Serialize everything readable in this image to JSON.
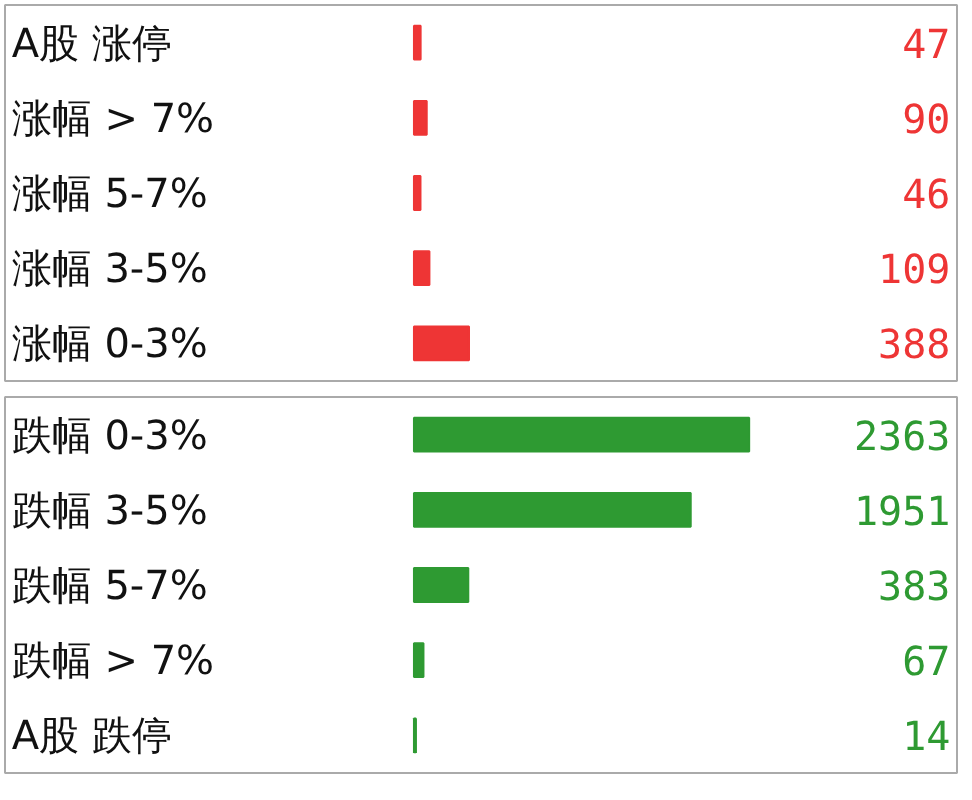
{
  "chart_data": [
    {
      "type": "bar",
      "orientation": "horizontal",
      "categories": [
        "A股 涨停",
        "涨幅 > 7%",
        "涨幅 5-7%",
        "涨幅 3-5%",
        "涨幅 0-3%"
      ],
      "values": [
        47,
        90,
        46,
        109,
        388
      ],
      "colors": [
        "#ee3535",
        "#ee3535",
        "#ee3535",
        "#ee3535",
        "#ee3535"
      ],
      "data_labels": true
    },
    {
      "type": "bar",
      "orientation": "horizontal",
      "categories": [
        "跌幅 0-3%",
        "跌幅 3-5%",
        "跌幅 5-7%",
        "跌幅 > 7%",
        "A股 跌停"
      ],
      "values": [
        2363,
        1951,
        383,
        67,
        14
      ],
      "colors": [
        "#2e9a32",
        "#2e9a32",
        "#2e9a32",
        "#2e9a32",
        "#2e9a32"
      ],
      "data_labels": true
    }
  ]
}
